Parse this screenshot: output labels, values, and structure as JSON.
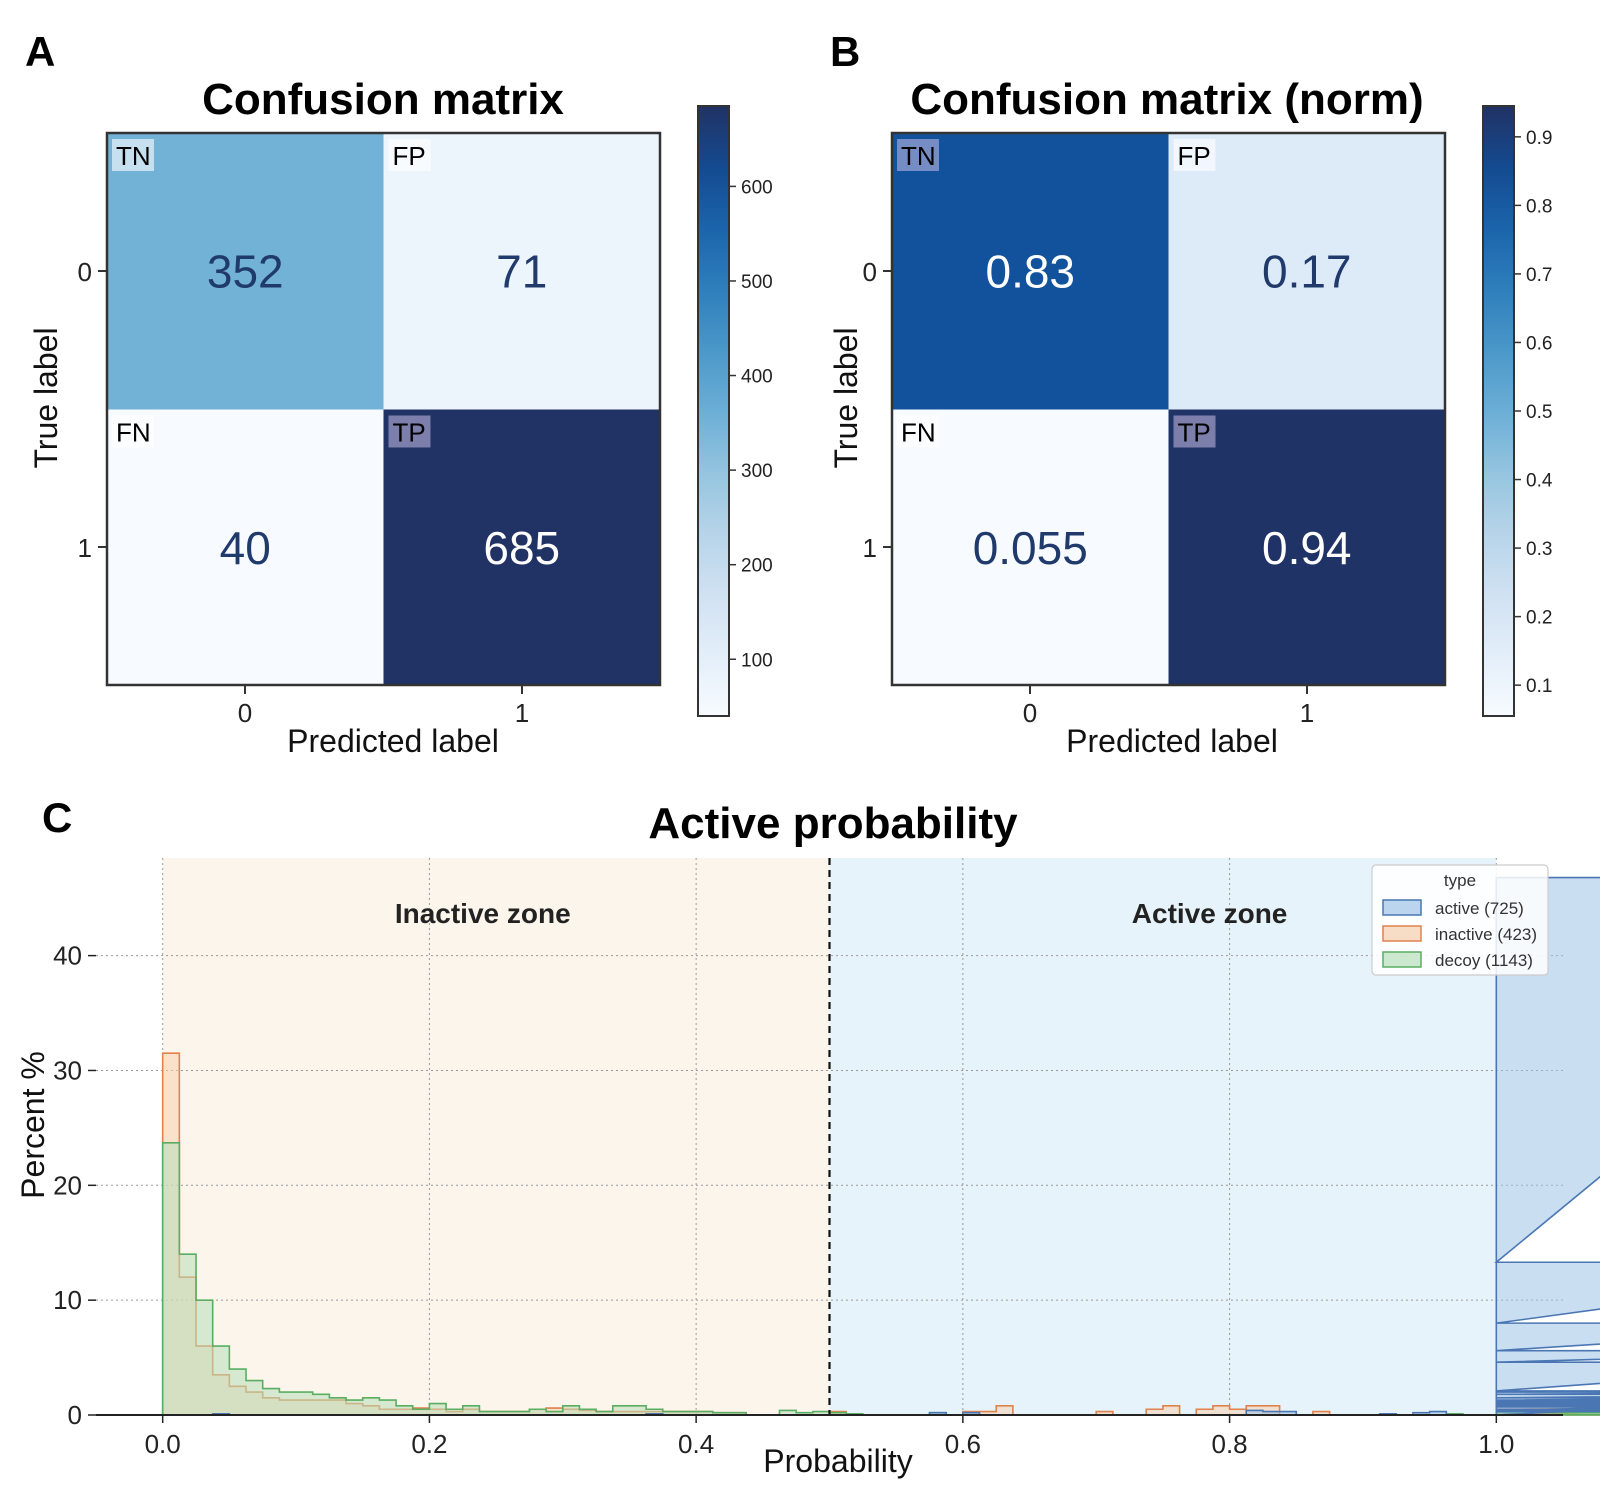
{
  "panels": {
    "a": {
      "letter": "A",
      "title": "Confusion matrix",
      "xlabel": "Predicted label",
      "ylabel": "True label",
      "x_ticks": [
        "0",
        "1"
      ],
      "y_ticks": [
        "0",
        "1"
      ],
      "colorbar_ticks": [
        "100",
        "200",
        "300",
        "400",
        "500",
        "600"
      ],
      "colormap": "Blues"
    },
    "b": {
      "letter": "B",
      "title": "Confusion matrix (norm)",
      "xlabel": "Predicted label",
      "ylabel": "True label",
      "x_ticks": [
        "0",
        "1"
      ],
      "y_ticks": [
        "0",
        "1"
      ],
      "colorbar_ticks": [
        "0.1",
        "0.2",
        "0.3",
        "0.4",
        "0.5",
        "0.6",
        "0.7",
        "0.8",
        "0.9"
      ],
      "colormap": "Blues"
    },
    "c": {
      "letter": "C",
      "title": "Active probability",
      "xlabel": "Probability",
      "ylabel": "Percent %",
      "x_ticks": [
        "0.0",
        "0.2",
        "0.4",
        "0.6",
        "0.8",
        "1.0"
      ],
      "y_ticks": [
        "0",
        "10",
        "20",
        "30",
        "40"
      ],
      "zones": {
        "inactive": {
          "label": "Inactive zone",
          "color": "#fbf5ec"
        },
        "active": {
          "label": "Active zone",
          "color": "#e7f3fa"
        }
      },
      "legend": {
        "title": "type",
        "entries": [
          "active (725)",
          "inactive (423)",
          "decoy (1143)"
        ]
      }
    }
  },
  "chart_data": [
    {
      "type": "heatmap",
      "title": "Confusion matrix",
      "xlabel": "Predicted label",
      "ylabel": "True label",
      "x_categories": [
        "0",
        "1"
      ],
      "y_categories": [
        "0",
        "1"
      ],
      "values": [
        [
          352,
          71
        ],
        [
          40,
          685
        ]
      ],
      "value_labels": [
        [
          "352",
          "71"
        ],
        [
          "40",
          "685"
        ]
      ],
      "cell_tags": [
        [
          "TN",
          "FP"
        ],
        [
          "FN",
          "TP"
        ]
      ],
      "colorbar_range": [
        40,
        685
      ],
      "colorbar_ticks": [
        100,
        200,
        300,
        400,
        500,
        600
      ]
    },
    {
      "type": "heatmap",
      "title": "Confusion matrix (norm)",
      "xlabel": "Predicted label",
      "ylabel": "True label",
      "x_categories": [
        "0",
        "1"
      ],
      "y_categories": [
        "0",
        "1"
      ],
      "values": [
        [
          0.83,
          0.17
        ],
        [
          0.055,
          0.94
        ]
      ],
      "value_labels": [
        [
          "0.83",
          "0.17"
        ],
        [
          "0.055",
          "0.94"
        ]
      ],
      "cell_tags": [
        [
          "TN",
          "FP"
        ],
        [
          "FN",
          "TP"
        ]
      ],
      "colorbar_range": [
        0.055,
        0.945
      ],
      "colorbar_ticks": [
        0.1,
        0.2,
        0.3,
        0.4,
        0.5,
        0.6,
        0.7,
        0.8,
        0.9
      ]
    },
    {
      "type": "area",
      "title": "Active probability",
      "xlabel": "Probability",
      "ylabel": "Percent %",
      "xlim": [
        -0.05,
        1.05
      ],
      "ylim": [
        0,
        48.5
      ],
      "grid": true,
      "legend_position": "top-right",
      "threshold": 0.5,
      "bin_width": 0.0125,
      "series": [
        {
          "name": "active (725)",
          "color": "#4a77b4",
          "fill": "#9fc3e7",
          "values": [
            0,
            0,
            0,
            0.1,
            0,
            0,
            0,
            0,
            0,
            0,
            0,
            0,
            0,
            0,
            0,
            0,
            0,
            0,
            0,
            0,
            0,
            0,
            0,
            0,
            0,
            0,
            0,
            0,
            0,
            0.1,
            0,
            0,
            0,
            0,
            0,
            0,
            0,
            0,
            0,
            0,
            0,
            0,
            0,
            0,
            0,
            0,
            0.2,
            0,
            0.2,
            0,
            0,
            0,
            0,
            0,
            0,
            0,
            0,
            0,
            0,
            0,
            0,
            0,
            0,
            0,
            0,
            0.4,
            0.3,
            0.3,
            0,
            0,
            0,
            0,
            0,
            0.1,
            0,
            0.2,
            0.3,
            0,
            0,
            0,
            0,
            0,
            0,
            0,
            0.3,
            0.3,
            0.3,
            0.5,
            0.4,
            0.7,
            1.0,
            1.2,
            0.3,
            0.7,
            0.8,
            0.8,
            0.9,
            1.0,
            1.1,
            1.3,
            1.5,
            1.8,
            2.0,
            2.1,
            4.6,
            5.6,
            8.0,
            13.3,
            46.8
          ]
        },
        {
          "name": "inactive (423)",
          "color": "#e0824c",
          "fill": "#f7cfae",
          "values": [
            31.5,
            12.0,
            6.0,
            3.5,
            2.5,
            2.0,
            1.5,
            1.3,
            1.3,
            1.3,
            1.3,
            1.0,
            0.8,
            0.5,
            0.5,
            0.6,
            0.5,
            0.3,
            0.5,
            0.3,
            0.3,
            0.3,
            0.5,
            0.6,
            0.5,
            0.4,
            0.3,
            0.3,
            0.3,
            0.3,
            0.3,
            0.3,
            0.3,
            0.2,
            0.2,
            0,
            0,
            0,
            0,
            0,
            0.3,
            0,
            0,
            0,
            0,
            0,
            0,
            0,
            0.3,
            0.3,
            0.8,
            0,
            0,
            0,
            0,
            0,
            0.3,
            0,
            0,
            0.5,
            0.8,
            0,
            0.5,
            0.8,
            0.5,
            0.8,
            0.8,
            0,
            0,
            0.3,
            0,
            0,
            0,
            0,
            0,
            0,
            0,
            0,
            0,
            0,
            0.3,
            0,
            0,
            0,
            0,
            0.3,
            0,
            0,
            0.3,
            0.5,
            0.3,
            0.3,
            0.5,
            0.3,
            0.5,
            0.3,
            0.3,
            0.8,
            0.5,
            0.3,
            0.5,
            0.5,
            0.8,
            0.8,
            1.0
          ]
        },
        {
          "name": "decoy (1143)",
          "color": "#5aae61",
          "fill": "#b8deb9",
          "values": [
            23.7,
            14.0,
            10.0,
            6.0,
            4.0,
            3.0,
            2.3,
            2.0,
            2.0,
            1.8,
            1.5,
            1.3,
            1.5,
            1.3,
            0.8,
            0.5,
            1.0,
            0.5,
            0.8,
            0.3,
            0.3,
            0.3,
            0.5,
            0.3,
            0.8,
            0.5,
            0.3,
            0.8,
            0.8,
            0.5,
            0.3,
            0.3,
            0.3,
            0.2,
            0.2,
            0,
            0,
            0.4,
            0.2,
            0.3,
            0.2,
            0.1,
            0,
            0,
            0,
            0,
            0.2,
            0,
            0,
            0,
            0,
            0,
            0,
            0,
            0,
            0,
            0,
            0,
            0,
            0,
            0,
            0,
            0,
            0,
            0,
            0,
            0,
            0,
            0,
            0,
            0,
            0,
            0,
            0,
            0,
            0,
            0,
            0.1,
            0,
            0,
            0,
            0,
            0,
            0,
            0,
            0,
            0,
            0,
            0,
            0,
            0,
            0,
            0,
            0,
            0,
            0,
            0,
            0,
            0,
            0,
            0,
            0,
            0,
            0,
            0,
            0,
            0,
            0,
            0.2
          ]
        }
      ]
    }
  ]
}
